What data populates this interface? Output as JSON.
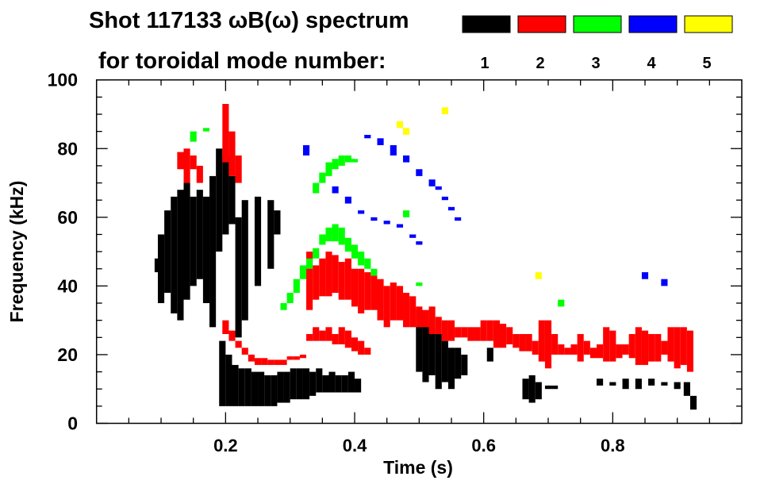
{
  "chart_data": {
    "type": "heatmap",
    "title_line1": "Shot 117133 ωB(ω) spectrum",
    "title_line2": "for toroidal mode number:",
    "xlabel": "Time (s)",
    "ylabel": "Frequency (kHz)",
    "xlim": [
      0,
      1.0
    ],
    "ylim": [
      0,
      100
    ],
    "xticks": [
      {
        "value": 0.2,
        "label": "0.2"
      },
      {
        "value": 0.4,
        "label": "0.4"
      },
      {
        "value": 0.6,
        "label": "0.6"
      },
      {
        "value": 0.8,
        "label": "0.8"
      }
    ],
    "yticks": [
      {
        "value": 0,
        "label": "0"
      },
      {
        "value": 20,
        "label": "20"
      },
      {
        "value": 40,
        "label": "40"
      },
      {
        "value": 60,
        "label": "60"
      },
      {
        "value": 80,
        "label": "80"
      },
      {
        "value": 100,
        "label": "100"
      }
    ],
    "legend_placement": "top-right",
    "band_format": "[time_s, freq_min_kHz, freq_max_kHz]",
    "series": [
      {
        "name": "1",
        "color": "#000000",
        "bands": [
          [
            0.095,
            44,
            48
          ],
          [
            0.1,
            35,
            55
          ],
          [
            0.11,
            38,
            62
          ],
          [
            0.12,
            32,
            66
          ],
          [
            0.13,
            30,
            68
          ],
          [
            0.14,
            36,
            70
          ],
          [
            0.15,
            40,
            66
          ],
          [
            0.16,
            42,
            68
          ],
          [
            0.17,
            35,
            66
          ],
          [
            0.18,
            28,
            72
          ],
          [
            0.19,
            50,
            80
          ],
          [
            0.2,
            55,
            78
          ],
          [
            0.21,
            58,
            72
          ],
          [
            0.22,
            25,
            60
          ],
          [
            0.23,
            30,
            65
          ],
          [
            0.25,
            40,
            66
          ],
          [
            0.27,
            45,
            65
          ],
          [
            0.28,
            55,
            62
          ],
          [
            0.195,
            5,
            24
          ],
          [
            0.205,
            5,
            20
          ],
          [
            0.215,
            5,
            17
          ],
          [
            0.225,
            5,
            16
          ],
          [
            0.235,
            5,
            16
          ],
          [
            0.245,
            5,
            15
          ],
          [
            0.255,
            5,
            15
          ],
          [
            0.265,
            5,
            14
          ],
          [
            0.275,
            5,
            14
          ],
          [
            0.285,
            6,
            15
          ],
          [
            0.295,
            6,
            15
          ],
          [
            0.305,
            7,
            16
          ],
          [
            0.315,
            7,
            16
          ],
          [
            0.325,
            7,
            16
          ],
          [
            0.335,
            8,
            15
          ],
          [
            0.345,
            9,
            16
          ],
          [
            0.355,
            9,
            14
          ],
          [
            0.365,
            9,
            15
          ],
          [
            0.375,
            9,
            14
          ],
          [
            0.385,
            9,
            14
          ],
          [
            0.395,
            9,
            15
          ],
          [
            0.405,
            9,
            13
          ],
          [
            0.5,
            15,
            33
          ],
          [
            0.51,
            12,
            30
          ],
          [
            0.52,
            14,
            28
          ],
          [
            0.53,
            10,
            26
          ],
          [
            0.54,
            12,
            24
          ],
          [
            0.55,
            10,
            22
          ],
          [
            0.56,
            13,
            22
          ],
          [
            0.57,
            14,
            20
          ],
          [
            0.61,
            18,
            22
          ],
          [
            0.665,
            7,
            13
          ],
          [
            0.675,
            6,
            14
          ],
          [
            0.685,
            7,
            12
          ],
          [
            0.7,
            10,
            11
          ],
          [
            0.71,
            10,
            11
          ],
          [
            0.78,
            11,
            13
          ],
          [
            0.8,
            11,
            12
          ],
          [
            0.82,
            10,
            13
          ],
          [
            0.84,
            10,
            13
          ],
          [
            0.86,
            11,
            13
          ],
          [
            0.88,
            11,
            12
          ],
          [
            0.9,
            10,
            12
          ],
          [
            0.915,
            8,
            12
          ],
          [
            0.925,
            4,
            8
          ]
        ]
      },
      {
        "name": "2",
        "color": "#ff0000",
        "bands": [
          [
            0.13,
            74,
            79
          ],
          [
            0.14,
            70,
            80
          ],
          [
            0.15,
            74,
            78
          ],
          [
            0.16,
            70,
            75
          ],
          [
            0.2,
            76,
            93
          ],
          [
            0.21,
            72,
            85
          ],
          [
            0.22,
            70,
            78
          ],
          [
            0.2,
            26,
            30
          ],
          [
            0.21,
            24,
            27
          ],
          [
            0.22,
            22,
            24
          ],
          [
            0.23,
            20,
            22
          ],
          [
            0.24,
            18,
            20
          ],
          [
            0.25,
            17,
            19
          ],
          [
            0.26,
            17,
            19
          ],
          [
            0.27,
            17,
            18.5
          ],
          [
            0.28,
            17,
            18.5
          ],
          [
            0.29,
            17,
            18.5
          ],
          [
            0.3,
            18.5,
            19.5
          ],
          [
            0.31,
            18.5,
            19.5
          ],
          [
            0.32,
            19,
            20
          ],
          [
            0.33,
            33,
            50
          ],
          [
            0.34,
            36,
            46
          ],
          [
            0.35,
            37,
            48
          ],
          [
            0.36,
            37,
            50
          ],
          [
            0.37,
            38,
            49
          ],
          [
            0.38,
            36,
            47
          ],
          [
            0.39,
            36,
            48
          ],
          [
            0.4,
            34,
            45
          ],
          [
            0.41,
            32,
            45
          ],
          [
            0.42,
            33,
            44
          ],
          [
            0.43,
            33,
            43
          ],
          [
            0.44,
            30,
            42
          ],
          [
            0.45,
            28,
            40
          ],
          [
            0.46,
            30,
            41
          ],
          [
            0.47,
            30,
            40
          ],
          [
            0.48,
            28,
            38
          ],
          [
            0.49,
            28,
            37
          ],
          [
            0.5,
            28,
            34
          ],
          [
            0.51,
            28,
            33
          ],
          [
            0.52,
            26,
            34
          ],
          [
            0.53,
            26,
            31
          ],
          [
            0.54,
            24,
            30
          ],
          [
            0.55,
            24,
            30
          ],
          [
            0.56,
            25,
            28
          ],
          [
            0.57,
            25,
            28
          ],
          [
            0.58,
            24,
            28
          ],
          [
            0.59,
            24,
            28
          ],
          [
            0.6,
            24,
            30
          ],
          [
            0.61,
            24,
            30
          ],
          [
            0.62,
            22,
            30
          ],
          [
            0.63,
            22,
            29
          ],
          [
            0.64,
            23,
            28
          ],
          [
            0.65,
            22,
            26
          ],
          [
            0.66,
            21,
            26
          ],
          [
            0.67,
            21,
            26
          ],
          [
            0.68,
            20,
            24
          ],
          [
            0.69,
            18,
            30
          ],
          [
            0.7,
            16,
            30
          ],
          [
            0.71,
            20,
            26
          ],
          [
            0.72,
            20,
            23
          ],
          [
            0.73,
            20,
            22
          ],
          [
            0.74,
            20,
            23
          ],
          [
            0.75,
            18,
            26
          ],
          [
            0.76,
            20,
            24
          ],
          [
            0.77,
            19,
            22
          ],
          [
            0.78,
            19,
            23
          ],
          [
            0.79,
            18,
            28
          ],
          [
            0.8,
            18,
            27
          ],
          [
            0.81,
            19,
            23
          ],
          [
            0.82,
            20,
            23
          ],
          [
            0.83,
            19,
            26
          ],
          [
            0.84,
            17,
            28
          ],
          [
            0.85,
            17,
            27
          ],
          [
            0.86,
            18,
            26
          ],
          [
            0.87,
            18,
            26
          ],
          [
            0.88,
            20,
            24
          ],
          [
            0.89,
            18,
            28
          ],
          [
            0.9,
            16,
            28
          ],
          [
            0.91,
            17,
            28
          ],
          [
            0.92,
            15,
            27
          ],
          [
            0.33,
            24,
            26
          ],
          [
            0.34,
            24,
            28
          ],
          [
            0.35,
            24,
            27
          ],
          [
            0.36,
            24,
            28
          ],
          [
            0.37,
            23,
            26
          ],
          [
            0.38,
            23,
            28
          ],
          [
            0.39,
            22,
            27
          ],
          [
            0.4,
            21,
            25
          ],
          [
            0.41,
            20,
            24
          ],
          [
            0.42,
            20,
            22
          ]
        ]
      },
      {
        "name": "3",
        "color": "#00ff00",
        "bands": [
          [
            0.34,
            67,
            70
          ],
          [
            0.35,
            70,
            73
          ],
          [
            0.36,
            72,
            76
          ],
          [
            0.37,
            74,
            77
          ],
          [
            0.38,
            75,
            78
          ],
          [
            0.39,
            76,
            78
          ],
          [
            0.4,
            76,
            77
          ],
          [
            0.29,
            33,
            35
          ],
          [
            0.3,
            35,
            38
          ],
          [
            0.31,
            38,
            42
          ],
          [
            0.32,
            42,
            46
          ],
          [
            0.33,
            45,
            48
          ],
          [
            0.34,
            48,
            51
          ],
          [
            0.35,
            52,
            55
          ],
          [
            0.36,
            53,
            57
          ],
          [
            0.37,
            53,
            58
          ],
          [
            0.38,
            52,
            57
          ],
          [
            0.39,
            50,
            54
          ],
          [
            0.4,
            48,
            52
          ],
          [
            0.41,
            46,
            50
          ],
          [
            0.42,
            45,
            48
          ],
          [
            0.43,
            43,
            45
          ],
          [
            0.15,
            82,
            85
          ],
          [
            0.17,
            85,
            86
          ],
          [
            0.48,
            60,
            62
          ],
          [
            0.5,
            40,
            41
          ],
          [
            0.72,
            34,
            36
          ]
        ]
      },
      {
        "name": "4",
        "color": "#0000ff",
        "bands": [
          [
            0.42,
            83,
            84
          ],
          [
            0.44,
            81,
            83
          ],
          [
            0.46,
            78,
            81
          ],
          [
            0.48,
            76,
            78
          ],
          [
            0.5,
            72,
            74
          ],
          [
            0.52,
            69,
            71
          ],
          [
            0.53,
            68,
            69
          ],
          [
            0.54,
            65,
            66
          ],
          [
            0.55,
            62,
            63
          ],
          [
            0.56,
            59,
            60
          ],
          [
            0.37,
            67,
            69
          ],
          [
            0.39,
            64,
            66
          ],
          [
            0.41,
            61,
            62
          ],
          [
            0.43,
            59,
            60
          ],
          [
            0.45,
            58,
            59
          ],
          [
            0.47,
            57,
            58
          ],
          [
            0.49,
            54,
            55
          ],
          [
            0.5,
            52,
            53
          ],
          [
            0.325,
            78,
            81
          ],
          [
            0.85,
            42,
            44
          ],
          [
            0.88,
            40,
            42
          ]
        ]
      },
      {
        "name": "5",
        "color": "#ffff00",
        "bands": [
          [
            0.47,
            86,
            88
          ],
          [
            0.48,
            84,
            86
          ],
          [
            0.54,
            90,
            92
          ],
          [
            0.685,
            42,
            44
          ]
        ]
      }
    ]
  }
}
